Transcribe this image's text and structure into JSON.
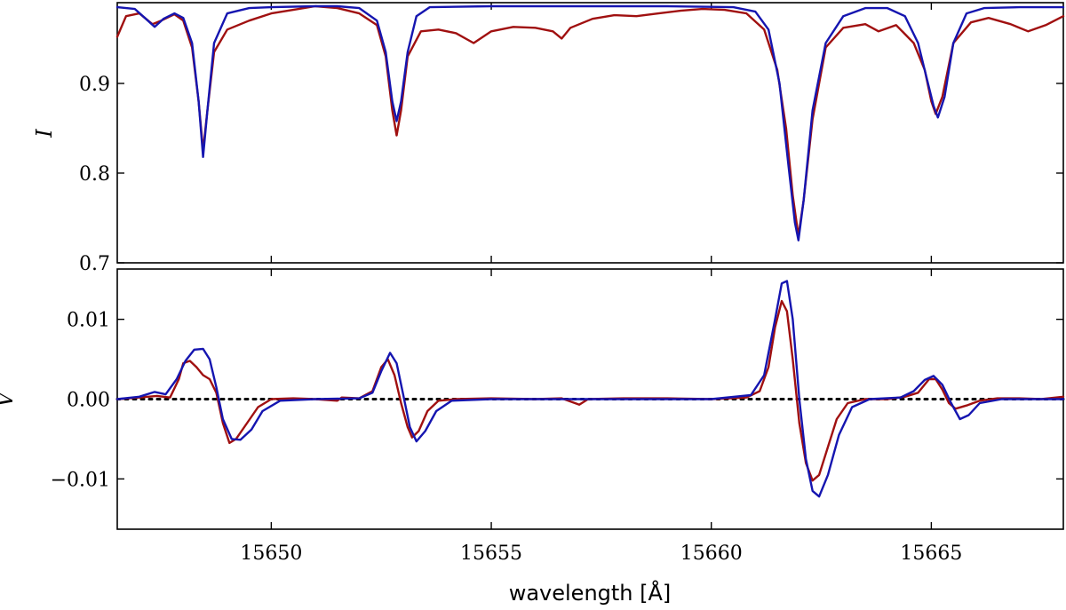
{
  "chart_data": [
    {
      "type": "line",
      "ylabel": "I",
      "xlim": [
        15646.5,
        15668
      ],
      "ylim": [
        0.7,
        0.99
      ],
      "yticks": [
        0.7,
        0.8,
        0.9
      ],
      "ytick_labels": [
        "0.7",
        "0.8",
        "0.9"
      ],
      "xticks": [
        15650,
        15655,
        15660,
        15665
      ],
      "grid": false,
      "series": [
        {
          "color": "#a01010",
          "points": [
            [
              15646.5,
              0.952
            ],
            [
              15646.7,
              0.975
            ],
            [
              15647.0,
              0.978
            ],
            [
              15647.3,
              0.966
            ],
            [
              15647.5,
              0.97
            ],
            [
              15647.8,
              0.977
            ],
            [
              15648.0,
              0.97
            ],
            [
              15648.2,
              0.94
            ],
            [
              15648.35,
              0.88
            ],
            [
              15648.45,
              0.825
            ],
            [
              15648.55,
              0.87
            ],
            [
              15648.7,
              0.935
            ],
            [
              15649.0,
              0.96
            ],
            [
              15649.5,
              0.97
            ],
            [
              15650.0,
              0.978
            ],
            [
              15650.5,
              0.982
            ],
            [
              15651.0,
              0.986
            ],
            [
              15651.5,
              0.984
            ],
            [
              15652.0,
              0.978
            ],
            [
              15652.4,
              0.965
            ],
            [
              15652.6,
              0.93
            ],
            [
              15652.75,
              0.87
            ],
            [
              15652.85,
              0.842
            ],
            [
              15652.95,
              0.87
            ],
            [
              15653.1,
              0.93
            ],
            [
              15653.4,
              0.958
            ],
            [
              15653.8,
              0.96
            ],
            [
              15654.2,
              0.956
            ],
            [
              15654.6,
              0.945
            ],
            [
              15655.0,
              0.958
            ],
            [
              15655.5,
              0.963
            ],
            [
              15656.0,
              0.962
            ],
            [
              15656.4,
              0.958
            ],
            [
              15656.6,
              0.95
            ],
            [
              15656.8,
              0.962
            ],
            [
              15657.3,
              0.972
            ],
            [
              15657.8,
              0.976
            ],
            [
              15658.3,
              0.975
            ],
            [
              15658.8,
              0.978
            ],
            [
              15659.3,
              0.981
            ],
            [
              15659.8,
              0.983
            ],
            [
              15660.3,
              0.982
            ],
            [
              15660.8,
              0.978
            ],
            [
              15661.2,
              0.96
            ],
            [
              15661.5,
              0.915
            ],
            [
              15661.7,
              0.85
            ],
            [
              15661.85,
              0.775
            ],
            [
              15661.98,
              0.73
            ],
            [
              15662.1,
              0.77
            ],
            [
              15662.3,
              0.86
            ],
            [
              15662.6,
              0.94
            ],
            [
              15663.0,
              0.962
            ],
            [
              15663.5,
              0.966
            ],
            [
              15663.8,
              0.958
            ],
            [
              15664.2,
              0.965
            ],
            [
              15664.6,
              0.945
            ],
            [
              15664.85,
              0.915
            ],
            [
              15665.0,
              0.88
            ],
            [
              15665.1,
              0.866
            ],
            [
              15665.25,
              0.885
            ],
            [
              15665.5,
              0.945
            ],
            [
              15665.9,
              0.968
            ],
            [
              15666.3,
              0.973
            ],
            [
              15666.8,
              0.966
            ],
            [
              15667.2,
              0.958
            ],
            [
              15667.6,
              0.965
            ],
            [
              15668.0,
              0.975
            ]
          ]
        },
        {
          "color": "#1515b0",
          "points": [
            [
              15646.5,
              0.985
            ],
            [
              15646.9,
              0.983
            ],
            [
              15647.15,
              0.972
            ],
            [
              15647.35,
              0.963
            ],
            [
              15647.55,
              0.972
            ],
            [
              15647.8,
              0.978
            ],
            [
              15648.0,
              0.973
            ],
            [
              15648.2,
              0.945
            ],
            [
              15648.35,
              0.88
            ],
            [
              15648.45,
              0.818
            ],
            [
              15648.55,
              0.87
            ],
            [
              15648.7,
              0.945
            ],
            [
              15649.0,
              0.978
            ],
            [
              15649.5,
              0.984
            ],
            [
              15650.0,
              0.985
            ],
            [
              15651.0,
              0.986
            ],
            [
              15651.5,
              0.986
            ],
            [
              15652.0,
              0.984
            ],
            [
              15652.4,
              0.97
            ],
            [
              15652.6,
              0.935
            ],
            [
              15652.75,
              0.88
            ],
            [
              15652.85,
              0.858
            ],
            [
              15652.95,
              0.88
            ],
            [
              15653.1,
              0.935
            ],
            [
              15653.3,
              0.975
            ],
            [
              15653.6,
              0.985
            ],
            [
              15655.0,
              0.986
            ],
            [
              15657.0,
              0.986
            ],
            [
              15659.0,
              0.986
            ],
            [
              15660.5,
              0.985
            ],
            [
              15661.0,
              0.98
            ],
            [
              15661.3,
              0.96
            ],
            [
              15661.55,
              0.9
            ],
            [
              15661.75,
              0.81
            ],
            [
              15661.9,
              0.745
            ],
            [
              15661.98,
              0.725
            ],
            [
              15662.1,
              0.77
            ],
            [
              15662.3,
              0.87
            ],
            [
              15662.6,
              0.945
            ],
            [
              15663.0,
              0.975
            ],
            [
              15663.5,
              0.984
            ],
            [
              15664.0,
              0.984
            ],
            [
              15664.4,
              0.975
            ],
            [
              15664.7,
              0.945
            ],
            [
              15664.9,
              0.905
            ],
            [
              15665.05,
              0.875
            ],
            [
              15665.15,
              0.862
            ],
            [
              15665.3,
              0.885
            ],
            [
              15665.5,
              0.945
            ],
            [
              15665.8,
              0.978
            ],
            [
              15666.2,
              0.984
            ],
            [
              15667.0,
              0.985
            ],
            [
              15668.0,
              0.985
            ]
          ]
        }
      ]
    },
    {
      "type": "line",
      "ylabel": "V",
      "xlabel": "wavelength [Å]",
      "xlim": [
        15646.5,
        15668
      ],
      "ylim": [
        -0.0163,
        0.0163
      ],
      "yticks": [
        -0.01,
        0.0,
        0.01
      ],
      "ytick_labels": [
        "−0.01",
        "0.00",
        "0.01"
      ],
      "xticks": [
        15650,
        15655,
        15660,
        15665
      ],
      "xtick_labels": [
        "15650",
        "15655",
        "15660",
        "15665"
      ],
      "grid": false,
      "reference_line": {
        "y": 0,
        "style": "dotted",
        "color": "#000000"
      },
      "series": [
        {
          "color": "#a01010",
          "points": [
            [
              15646.5,
              0.0
            ],
            [
              15647.0,
              0.0002
            ],
            [
              15647.4,
              0.0004
            ],
            [
              15647.7,
              0.0002
            ],
            [
              15647.9,
              0.0025
            ],
            [
              15648.0,
              0.0045
            ],
            [
              15648.15,
              0.0048
            ],
            [
              15648.3,
              0.004
            ],
            [
              15648.45,
              0.003
            ],
            [
              15648.6,
              0.0025
            ],
            [
              15648.75,
              0.0008
            ],
            [
              15648.9,
              -0.003
            ],
            [
              15649.05,
              -0.0055
            ],
            [
              15649.2,
              -0.005
            ],
            [
              15649.45,
              -0.003
            ],
            [
              15649.7,
              -0.001
            ],
            [
              15650.0,
              0.0
            ],
            [
              15650.5,
              0.0001
            ],
            [
              15651.0,
              0.0
            ],
            [
              15651.5,
              -0.0002
            ],
            [
              15651.6,
              0.0002
            ],
            [
              15652.0,
              0.0001
            ],
            [
              15652.3,
              0.001
            ],
            [
              15652.5,
              0.004
            ],
            [
              15652.65,
              0.005
            ],
            [
              15652.8,
              0.003
            ],
            [
              15652.95,
              -0.0005
            ],
            [
              15653.1,
              -0.0035
            ],
            [
              15653.2,
              -0.0048
            ],
            [
              15653.35,
              -0.004
            ],
            [
              15653.55,
              -0.0015
            ],
            [
              15653.8,
              -0.0002
            ],
            [
              15654.2,
              0.0
            ],
            [
              15655.0,
              0.0001
            ],
            [
              15656.0,
              0.0
            ],
            [
              15656.6,
              0.0001
            ],
            [
              15657.0,
              -0.0007
            ],
            [
              15657.2,
              0.0
            ],
            [
              15658.0,
              0.0001
            ],
            [
              15659.0,
              0.0001
            ],
            [
              15660.0,
              0.0
            ],
            [
              15660.8,
              0.0002
            ],
            [
              15661.1,
              0.001
            ],
            [
              15661.3,
              0.004
            ],
            [
              15661.45,
              0.009
            ],
            [
              15661.6,
              0.0123
            ],
            [
              15661.72,
              0.011
            ],
            [
              15661.85,
              0.005
            ],
            [
              15662.0,
              -0.003
            ],
            [
              15662.15,
              -0.008
            ],
            [
              15662.3,
              -0.0102
            ],
            [
              15662.45,
              -0.0095
            ],
            [
              15662.65,
              -0.006
            ],
            [
              15662.85,
              -0.0025
            ],
            [
              15663.1,
              -0.0005
            ],
            [
              15663.5,
              0.0
            ],
            [
              15664.0,
              0.0
            ],
            [
              15664.4,
              0.0003
            ],
            [
              15664.7,
              0.0008
            ],
            [
              15664.95,
              0.0025
            ],
            [
              15665.1,
              0.0025
            ],
            [
              15665.25,
              0.0012
            ],
            [
              15665.4,
              -0.0005
            ],
            [
              15665.55,
              -0.0012
            ],
            [
              15665.8,
              -0.0008
            ],
            [
              15666.1,
              -0.0002
            ],
            [
              15666.5,
              0.0001
            ],
            [
              15667.0,
              0.0001
            ],
            [
              15667.5,
              0.0
            ],
            [
              15668.0,
              0.0003
            ]
          ]
        },
        {
          "color": "#1515b0",
          "points": [
            [
              15646.5,
              0.0
            ],
            [
              15647.0,
              0.0003
            ],
            [
              15647.35,
              0.0009
            ],
            [
              15647.6,
              0.0006
            ],
            [
              15647.85,
              0.0025
            ],
            [
              15648.05,
              0.0048
            ],
            [
              15648.25,
              0.0062
            ],
            [
              15648.45,
              0.0063
            ],
            [
              15648.6,
              0.005
            ],
            [
              15648.75,
              0.0015
            ],
            [
              15648.9,
              -0.0025
            ],
            [
              15649.1,
              -0.005
            ],
            [
              15649.3,
              -0.0051
            ],
            [
              15649.55,
              -0.0038
            ],
            [
              15649.8,
              -0.0015
            ],
            [
              15650.2,
              -0.0002
            ],
            [
              15651.0,
              0.0
            ],
            [
              15652.0,
              0.0001
            ],
            [
              15652.3,
              0.0008
            ],
            [
              15652.5,
              0.0035
            ],
            [
              15652.7,
              0.0058
            ],
            [
              15652.85,
              0.0045
            ],
            [
              15653.0,
              0.0005
            ],
            [
              15653.15,
              -0.0035
            ],
            [
              15653.3,
              -0.0053
            ],
            [
              15653.5,
              -0.004
            ],
            [
              15653.75,
              -0.0015
            ],
            [
              15654.1,
              -0.0002
            ],
            [
              15655.0,
              0.0
            ],
            [
              15658.0,
              0.0
            ],
            [
              15660.0,
              0.0
            ],
            [
              15660.9,
              0.0005
            ],
            [
              15661.2,
              0.003
            ],
            [
              15661.45,
              0.01
            ],
            [
              15661.6,
              0.0145
            ],
            [
              15661.72,
              0.0148
            ],
            [
              15661.85,
              0.01
            ],
            [
              15662.0,
              0.0
            ],
            [
              15662.15,
              -0.0075
            ],
            [
              15662.3,
              -0.0115
            ],
            [
              15662.45,
              -0.0122
            ],
            [
              15662.65,
              -0.0095
            ],
            [
              15662.9,
              -0.0045
            ],
            [
              15663.2,
              -0.001
            ],
            [
              15663.6,
              0.0
            ],
            [
              15664.3,
              0.0002
            ],
            [
              15664.6,
              0.001
            ],
            [
              15664.85,
              0.0024
            ],
            [
              15665.05,
              0.0029
            ],
            [
              15665.25,
              0.0018
            ],
            [
              15665.45,
              -0.0005
            ],
            [
              15665.65,
              -0.0025
            ],
            [
              15665.85,
              -0.002
            ],
            [
              15666.1,
              -0.0005
            ],
            [
              15666.6,
              0.0
            ],
            [
              15668.0,
              0.0
            ]
          ]
        }
      ]
    }
  ]
}
